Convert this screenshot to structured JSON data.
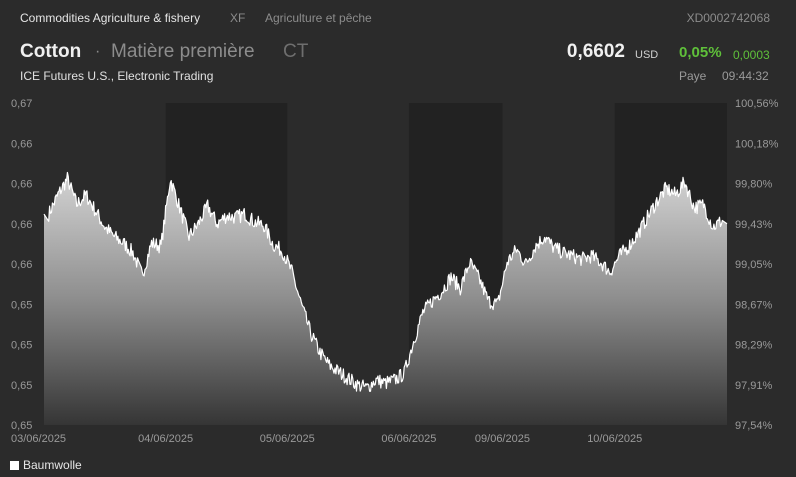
{
  "topbar": {
    "category": "Commodities Agriculture & fishery",
    "exchange_code": "XF",
    "subcategory": "Agriculture et pêche",
    "isin": "XD0002742068"
  },
  "header": {
    "name": "Cotton",
    "separator": "·",
    "type": "Matière première",
    "symbol": "CT",
    "exchange": "ICE Futures U.S., Electronic Trading",
    "price": "0,6602",
    "currency": "USD",
    "change_pct": "0,05%",
    "change_abs": "0,0003",
    "place": "Paye",
    "time": "09:44:32"
  },
  "colors": {
    "background": "#2b2b2b",
    "band": "#222222",
    "up": "#5fc03a",
    "line": "#ffffff"
  },
  "chart_data": {
    "type": "area",
    "series": [
      {
        "name": "Baumwolle",
        "points": [
          [
            "03/06/2025",
            0.6606
          ],
          [
            "03/06/2025",
            0.6618
          ],
          [
            "03/06/2025",
            0.6628
          ],
          [
            "03/06/2025",
            0.6612
          ],
          [
            "03/06/2025",
            0.6618
          ],
          [
            "03/06/2025",
            0.6608
          ],
          [
            "03/06/2025",
            0.6598
          ],
          [
            "03/06/2025",
            0.6592
          ],
          [
            "03/06/2025",
            0.6588
          ],
          [
            "03/06/2025",
            0.6582
          ],
          [
            "03/06/2025",
            0.6568
          ],
          [
            "03/06/2025",
            0.6588
          ],
          [
            "03/06/2025",
            0.6586
          ],
          [
            "04/06/2025",
            0.6628
          ],
          [
            "04/06/2025",
            0.661
          ],
          [
            "04/06/2025",
            0.6592
          ],
          [
            "04/06/2025",
            0.66
          ],
          [
            "04/06/2025",
            0.6611
          ],
          [
            "04/06/2025",
            0.66
          ],
          [
            "04/06/2025",
            0.6605
          ],
          [
            "04/06/2025",
            0.6604
          ],
          [
            "04/06/2025",
            0.6606
          ],
          [
            "04/06/2025",
            0.6601
          ],
          [
            "04/06/2025",
            0.6599
          ],
          [
            "04/06/2025",
            0.6587
          ],
          [
            "04/06/2025",
            0.6583
          ],
          [
            "05/06/2025",
            0.657
          ],
          [
            "05/06/2025",
            0.655
          ],
          [
            "05/06/2025",
            0.6532
          ],
          [
            "05/06/2025",
            0.652
          ],
          [
            "05/06/2025",
            0.6512
          ],
          [
            "05/06/2025",
            0.6508
          ],
          [
            "05/06/2025",
            0.6504
          ],
          [
            "05/06/2025",
            0.65
          ],
          [
            "05/06/2025",
            0.6498
          ],
          [
            "05/06/2025",
            0.6503
          ],
          [
            "05/06/2025",
            0.6501
          ],
          [
            "05/06/2025",
            0.6503
          ],
          [
            "05/06/2025",
            0.6507
          ],
          [
            "06/06/2025",
            0.6527
          ],
          [
            "06/06/2025",
            0.6545
          ],
          [
            "06/06/2025",
            0.6552
          ],
          [
            "06/06/2025",
            0.6558
          ],
          [
            "06/06/2025",
            0.6567
          ],
          [
            "06/06/2025",
            0.656
          ],
          [
            "06/06/2025",
            0.6576
          ],
          [
            "06/06/2025",
            0.6566
          ],
          [
            "06/06/2025",
            0.6552
          ],
          [
            "06/06/2025",
            0.655
          ],
          [
            "09/06/2025",
            0.6576
          ],
          [
            "09/06/2025",
            0.6584
          ],
          [
            "09/06/2025",
            0.6575
          ],
          [
            "09/06/2025",
            0.6586
          ],
          [
            "09/06/2025",
            0.6592
          ],
          [
            "09/06/2025",
            0.6585
          ],
          [
            "09/06/2025",
            0.6582
          ],
          [
            "09/06/2025",
            0.658
          ],
          [
            "09/06/2025",
            0.6578
          ],
          [
            "09/06/2025",
            0.658
          ],
          [
            "09/06/2025",
            0.6576
          ],
          [
            "09/06/2025",
            0.657
          ],
          [
            "10/06/2025",
            0.658
          ],
          [
            "10/06/2025",
            0.6586
          ],
          [
            "10/06/2025",
            0.6594
          ],
          [
            "10/06/2025",
            0.6604
          ],
          [
            "10/06/2025",
            0.6614
          ],
          [
            "10/06/2025",
            0.6622
          ],
          [
            "10/06/2025",
            0.6618
          ],
          [
            "10/06/2025",
            0.6626
          ],
          [
            "10/06/2025",
            0.661
          ],
          [
            "10/06/2025",
            0.6612
          ],
          [
            "10/06/2025",
            0.6598
          ],
          [
            "10/06/2025",
            0.6602
          ]
        ]
      }
    ],
    "x_labels": [
      "03/06/2025",
      "04/06/2025",
      "05/06/2025",
      "06/06/2025",
      "09/06/2025",
      "10/06/2025"
    ],
    "y_labels_left": [
      "0,67",
      "0,66",
      "0,66",
      "0,66",
      "0,66",
      "0,65",
      "0,65",
      "0,65",
      "0,65"
    ],
    "y_labels_right": [
      "100,56%",
      "100,18%",
      "99,80%",
      "99,43%",
      "99,05%",
      "98,67%",
      "98,29%",
      "97,91%",
      "97,54%"
    ],
    "ylim": [
      0.6475,
      0.6675
    ],
    "grid": false,
    "alternating_day_bands": true,
    "legend": "bottom-left"
  }
}
